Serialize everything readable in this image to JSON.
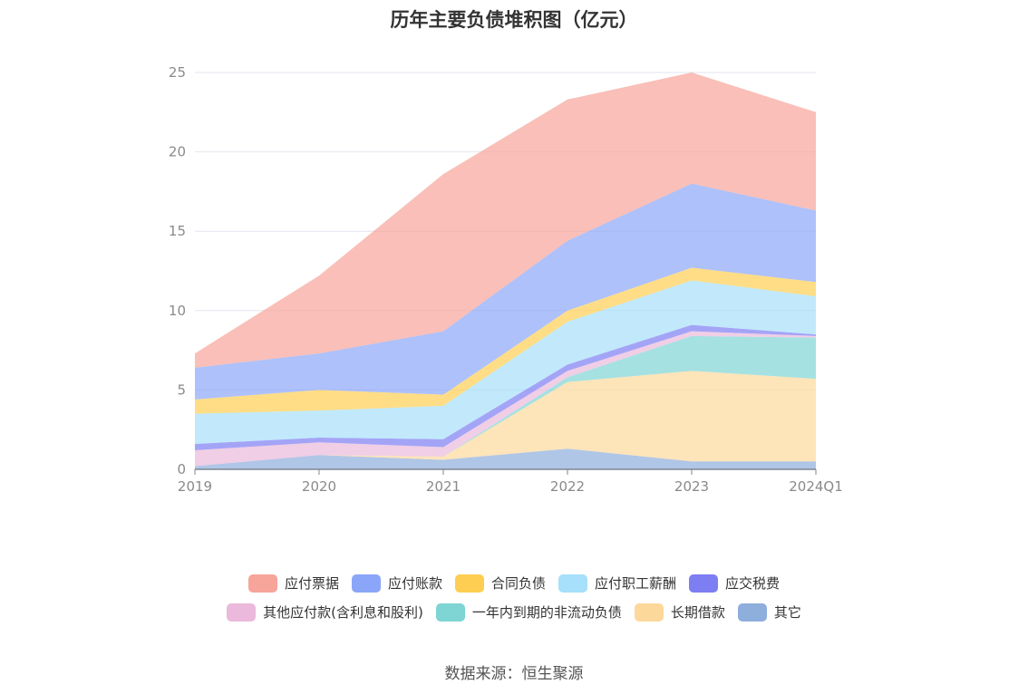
{
  "chart_data": {
    "type": "area",
    "stacked": true,
    "title": "历年主要负债堆积图（亿元）",
    "categories": [
      "2019",
      "2020",
      "2021",
      "2022",
      "2023",
      "2024Q1"
    ],
    "ylim": [
      0,
      25
    ],
    "yticks": [
      0,
      5,
      10,
      15,
      20,
      25
    ],
    "grid": true,
    "legend_position": "bottom",
    "series": [
      {
        "name": "其它",
        "color": "#8eaedc",
        "values": [
          0.2,
          0.9,
          0.6,
          1.3,
          0.5,
          0.5
        ]
      },
      {
        "name": "长期借款",
        "color": "#fdd89b",
        "values": [
          0,
          0,
          0.2,
          4.2,
          5.7,
          5.2
        ]
      },
      {
        "name": "一年内到期的非流动负债",
        "color": "#7fd4d4",
        "values": [
          0,
          0,
          0,
          0.3,
          2.2,
          2.6
        ]
      },
      {
        "name": "其他应付款(含利息和股利)",
        "color": "#eab9dc",
        "values": [
          1.0,
          0.8,
          0.6,
          0.4,
          0.3,
          0.1
        ]
      },
      {
        "name": "应交税费",
        "color": "#7e7ef3",
        "values": [
          0.4,
          0.3,
          0.5,
          0.4,
          0.4,
          0.1
        ]
      },
      {
        "name": "应付职工薪酬",
        "color": "#a6e0fa",
        "values": [
          1.9,
          1.7,
          2.1,
          2.7,
          2.8,
          2.4
        ]
      },
      {
        "name": "合同负债",
        "color": "#fece53",
        "values": [
          0.9,
          1.3,
          0.7,
          0.7,
          0.8,
          0.9
        ]
      },
      {
        "name": "应付账款",
        "color": "#8ba6f8",
        "values": [
          2.0,
          2.3,
          4.0,
          4.4,
          5.3,
          4.5
        ]
      },
      {
        "name": "应付票据",
        "color": "#f7a49a",
        "values": [
          0.9,
          4.9,
          9.9,
          8.9,
          7.0,
          6.2
        ]
      }
    ]
  },
  "legend_rows": [
    [
      "应付票据",
      "应付账款",
      "合同负债",
      "应付职工薪酬",
      "应交税费"
    ],
    [
      "其他应付款(含利息和股利)",
      "一年内到期的非流动负债",
      "长期借款",
      "其它"
    ]
  ],
  "source": "数据来源：恒生聚源"
}
